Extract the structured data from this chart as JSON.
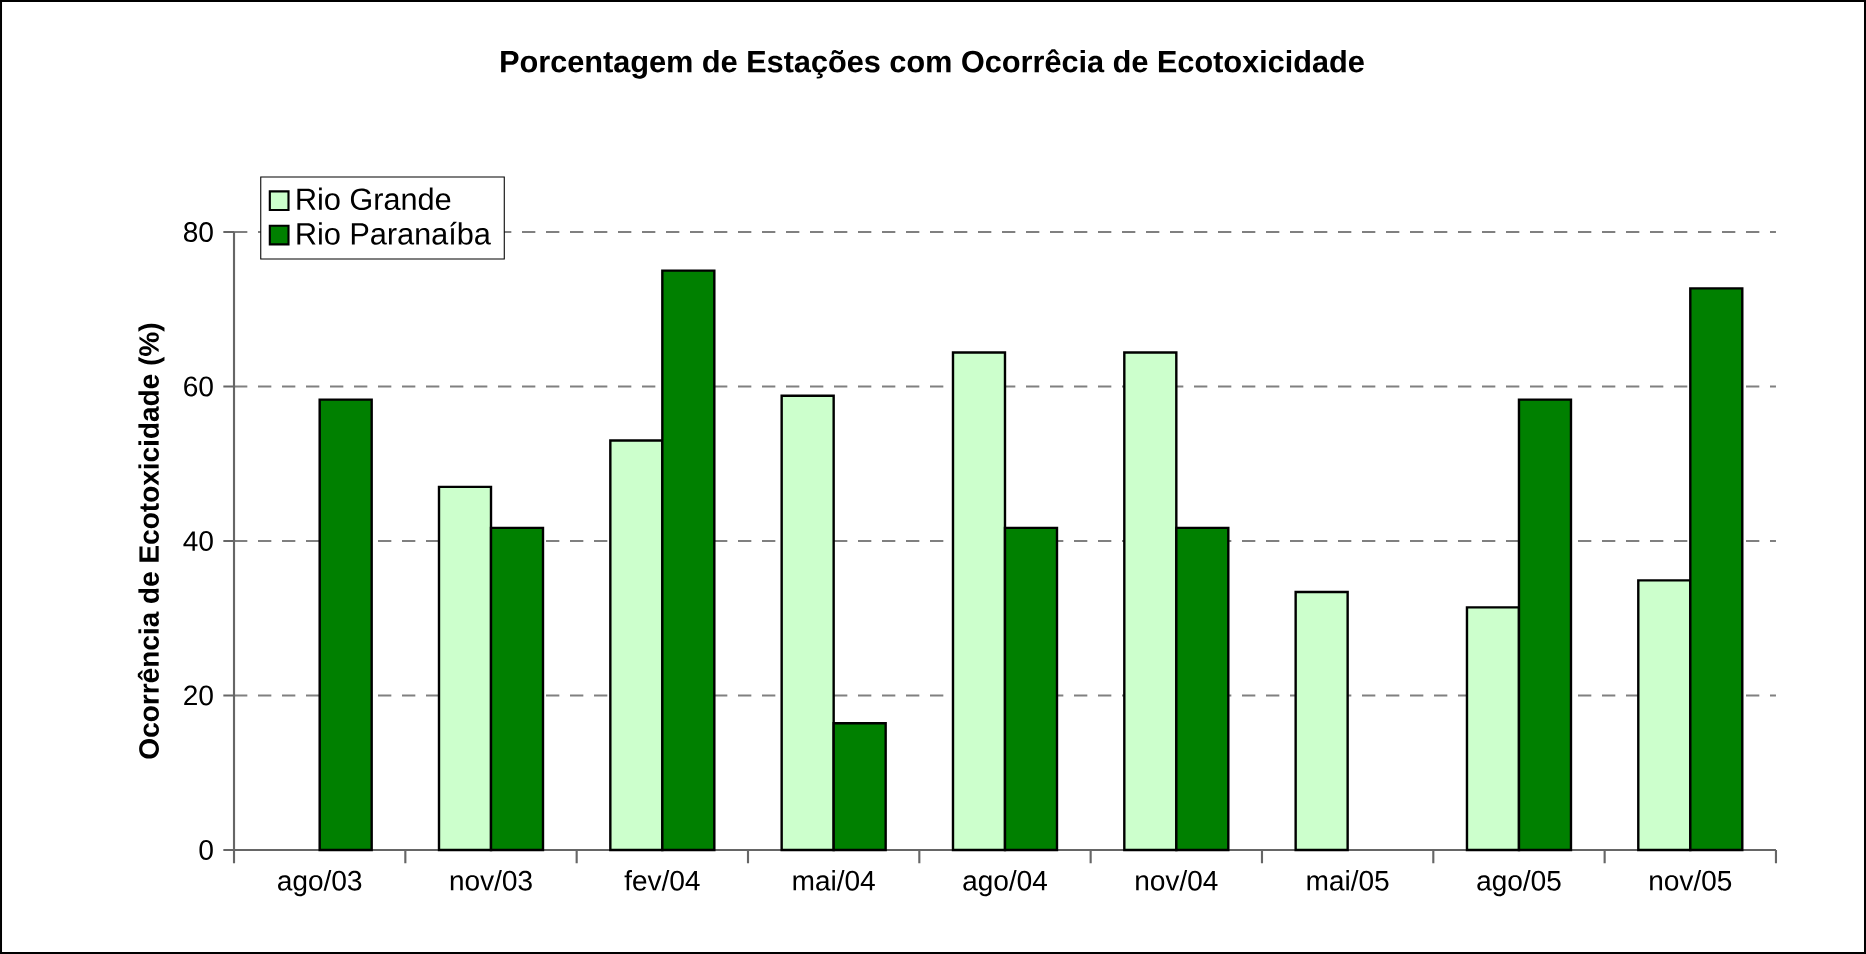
{
  "chart_data": {
    "type": "bar",
    "title": "Porcentagem de Estações com Ocorrêcia de Ecotoxicidade",
    "ylabel": "Ocorrência de Ecotoxicidade (%)",
    "categories": [
      "ago/03",
      "nov/03",
      "fev/04",
      "mai/04",
      "ago/04",
      "nov/04",
      "mai/05",
      "ago/05",
      "nov/05"
    ],
    "series": [
      {
        "name": "Rio Grande",
        "color": "#ccffcc",
        "values": [
          null,
          47,
          53,
          58.8,
          64.4,
          64.4,
          33.4,
          31.4,
          34.9
        ]
      },
      {
        "name": "Rio Paranaíba",
        "color": "#008000",
        "values": [
          58.3,
          41.7,
          75,
          16.4,
          41.7,
          41.7,
          null,
          58.3,
          72.7
        ]
      }
    ],
    "ylim": [
      0,
      80
    ],
    "yticks": [
      0,
      20,
      40,
      60,
      80
    ],
    "grid": "y",
    "legend": "top left"
  }
}
